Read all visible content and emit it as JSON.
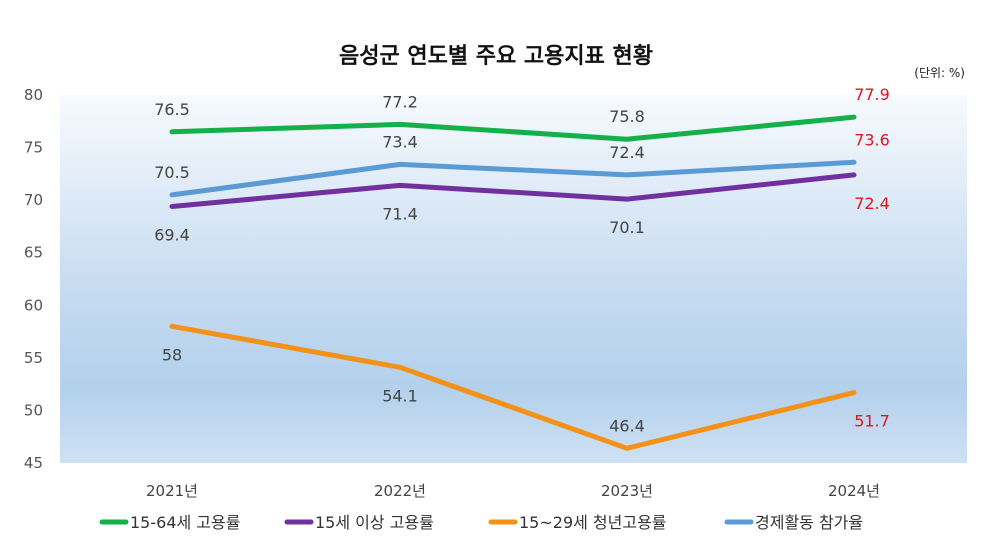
{
  "chart_data": {
    "type": "line",
    "title": "음성군 연도별 주요 고용지표 현황",
    "unit_note": "(단위: %)",
    "categories": [
      "2021년",
      "2022년",
      "2023년",
      "2024년"
    ],
    "ylim": [
      45,
      80
    ],
    "yticks": [
      45,
      50,
      55,
      60,
      65,
      70,
      75,
      80
    ],
    "grid": false,
    "legend_position": "bottom",
    "highlight_color": "#e0141e",
    "series": [
      {
        "name": "15-64세 고용률",
        "color": "#14b14b",
        "values": [
          76.5,
          77.2,
          75.8,
          77.9
        ],
        "label_pos": [
          "above",
          "above",
          "above",
          "above"
        ]
      },
      {
        "name": "15세 이상 고용률",
        "color": "#7030a0",
        "values": [
          69.4,
          71.4,
          70.1,
          72.4
        ],
        "label_pos": [
          "below",
          "below",
          "below",
          "below"
        ]
      },
      {
        "name": "15~29세 청년고용률",
        "color": "#f39118",
        "values": [
          58,
          54.1,
          46.4,
          51.7
        ],
        "label_pos": [
          "below",
          "below",
          "above",
          "below"
        ]
      },
      {
        "name": "경제활동 참가율",
        "color": "#5b9bd5",
        "values": [
          70.5,
          73.4,
          72.4,
          73.6
        ],
        "label_pos": [
          "above",
          "above",
          "above",
          "above"
        ]
      }
    ]
  }
}
